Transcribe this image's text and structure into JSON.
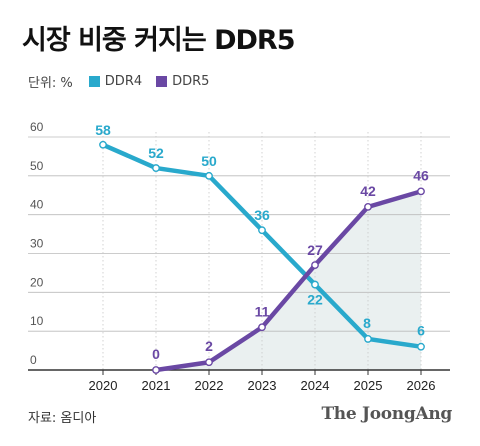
{
  "title": "시장 비중 커지는 DDR5",
  "unit": "단위: %",
  "source": "자료: 옴디아",
  "brand": "The JoongAng",
  "colors": {
    "ddr4": "#29a9cc",
    "ddr5": "#6a48a4",
    "area": "#eaf0f0",
    "grid": "#bbbbbb"
  },
  "chart_data": {
    "type": "line",
    "title": "시장 비중 커지는 DDR5",
    "x": [
      "2020",
      "2021",
      "2022",
      "2023",
      "2024",
      "2025",
      "2026"
    ],
    "ylim": [
      0,
      60
    ],
    "yticks": [
      "0",
      "10",
      "20",
      "30",
      "40",
      "50",
      "60"
    ],
    "grid": true,
    "legend_position": "top-left",
    "series": [
      {
        "name": "DDR4",
        "x": [
          "2020",
          "2021",
          "2022",
          "2023",
          "2024",
          "2025",
          "2026"
        ],
        "values": [
          58,
          52,
          50,
          36,
          22,
          8,
          6
        ],
        "labels": [
          "58",
          "52",
          "50",
          "36",
          "22",
          "8",
          "6"
        ]
      },
      {
        "name": "DDR5",
        "x": [
          "2021",
          "2022",
          "2023",
          "2024",
          "2025",
          "2026"
        ],
        "values": [
          0,
          2,
          11,
          27,
          42,
          46
        ],
        "labels": [
          "0",
          "2",
          "11",
          "27",
          "42",
          "46"
        ]
      }
    ]
  }
}
